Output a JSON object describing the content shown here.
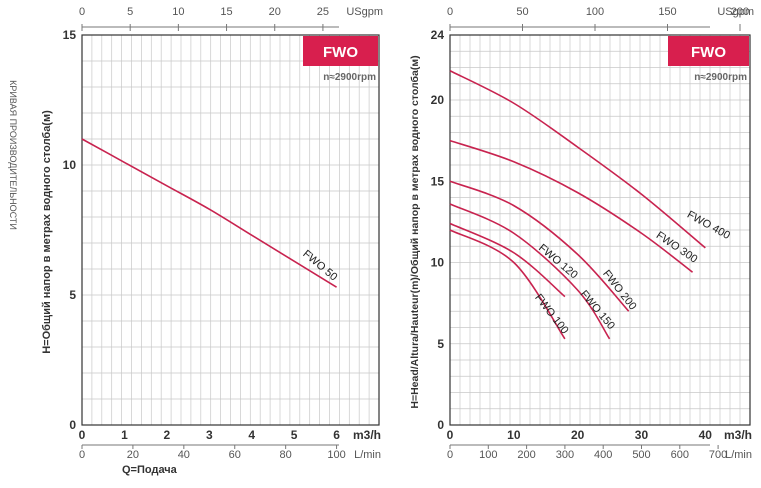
{
  "side_title": "КРИВАЯ ПРОИЗВОДИТЕЛЬНОСТИ",
  "colors": {
    "curve": "#c8234f",
    "badge": "#d81f4e",
    "grid": "#c8c8c8"
  },
  "chart_data": [
    {
      "type": "line",
      "badge": "FWO",
      "speed_note": "n≈2900rpm",
      "ylabel": "H=Общий напор в метрах водного столба(м)",
      "xlabel": "Q=Подача",
      "ylim": [
        0,
        15
      ],
      "yticks": [
        "0",
        "5",
        "10",
        "15"
      ],
      "xlim_m3h": [
        0,
        7
      ],
      "x_top": {
        "unit": "USgpm",
        "max": 30.82,
        "ticks": [
          "0",
          "5",
          "10",
          "15",
          "20",
          "25"
        ]
      },
      "x_m3h": {
        "unit": "m3/h",
        "ticks": [
          "0",
          "1",
          "2",
          "3",
          "4",
          "5",
          "6"
        ]
      },
      "x_lmin": {
        "unit": "L/min",
        "max": 116.67,
        "ticks": [
          "0",
          "20",
          "40",
          "60",
          "80",
          "100"
        ]
      },
      "grid": true,
      "series": [
        {
          "name": "FWO 50",
          "x": [
            0,
            1,
            2,
            3,
            4,
            5,
            6
          ],
          "y": [
            11.0,
            10.1,
            9.2,
            8.3,
            7.3,
            6.3,
            5.3
          ]
        }
      ]
    },
    {
      "type": "line",
      "badge": "FWO",
      "speed_note": "n≈2900rpm",
      "ylabel": "H=Head/Altura/Hauteur(m)/Общий напор в метрах водного столба(м)",
      "xlabel": "",
      "ylim": [
        0,
        24
      ],
      "yticks": [
        "0",
        "5",
        "10",
        "15",
        "20",
        "24"
      ],
      "xlim_m3h": [
        0,
        47
      ],
      "x_top": {
        "unit": "USgpm",
        "max": 206.9,
        "ticks": [
          "0",
          "50",
          "100",
          "150",
          "200"
        ]
      },
      "x_m3h": {
        "unit": "m3/h",
        "ticks": [
          "0",
          "10",
          "20",
          "30",
          "40"
        ]
      },
      "x_lmin": {
        "unit": "L/min",
        "max": 783.3,
        "ticks": [
          "0",
          "100",
          "200",
          "300",
          "400",
          "500",
          "600",
          "700"
        ]
      },
      "grid": true,
      "series": [
        {
          "name": "FWO 400",
          "x": [
            0,
            10,
            20,
            30,
            40
          ],
          "y": [
            21.8,
            19.8,
            17.1,
            14.2,
            10.9
          ]
        },
        {
          "name": "FWO 300",
          "x": [
            0,
            10,
            20,
            30,
            38
          ],
          "y": [
            17.5,
            16.2,
            14.3,
            11.8,
            9.4
          ]
        },
        {
          "name": "FWO 200",
          "x": [
            0,
            10,
            20,
            28
          ],
          "y": [
            15.0,
            13.5,
            10.5,
            7.0
          ]
        },
        {
          "name": "FWO 150",
          "x": [
            0,
            10,
            20,
            25
          ],
          "y": [
            13.6,
            11.8,
            8.3,
            5.3
          ]
        },
        {
          "name": "FWO 120",
          "x": [
            0,
            10,
            18
          ],
          "y": [
            12.4,
            10.6,
            7.9
          ]
        },
        {
          "name": "FWO 100",
          "x": [
            0,
            10,
            18
          ],
          "y": [
            12.0,
            10.0,
            5.3
          ]
        }
      ]
    }
  ]
}
